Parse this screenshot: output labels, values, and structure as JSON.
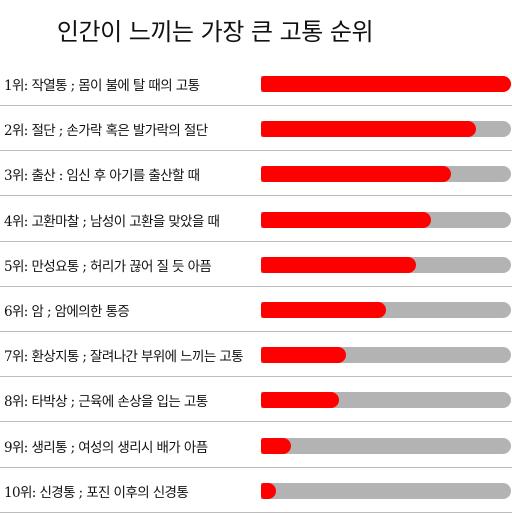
{
  "chart_data": {
    "type": "bar",
    "title": "인간이 느끼는 가장 큰 고통 순위",
    "orientation": "horizontal",
    "grid": false,
    "colors": {
      "fill": "#ff0000",
      "track": "#b3b3b3"
    },
    "ylim": [
      0,
      100
    ],
    "categories": [
      "1위: 작열통 ; 몸이 불에 탈 때의 고통",
      "2위: 절단 ; 손가락 혹은 발가락의 절단",
      "3위: 출산 : 임신 후 아기를 출산할 때",
      "4위: 고환마찰 ; 남성이 고환을 맞았을 때",
      "5위: 만성요통 ; 허리가 끊어 질 듯 아픔",
      "6위: 암 ; 암에의한 통증",
      "7위: 환상지통 ; 잘려나간 부위에 느끼는 고통",
      "8위: 타박상 ; 근육에 손상을 입는 고통",
      "9위: 생리통 ; 여성의 생리시 배가 아픔",
      "10위: 신경통 ; 포진 이후의 신경통"
    ],
    "values": [
      100,
      86,
      76,
      68,
      62,
      50,
      34,
      31,
      12,
      6
    ]
  }
}
